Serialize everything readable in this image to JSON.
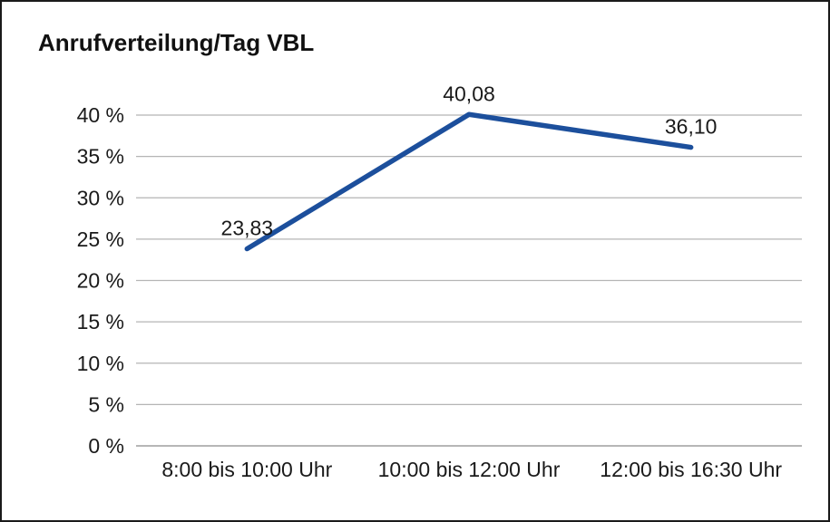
{
  "chart_data": {
    "type": "line",
    "title": "Anrufverteilung/Tag VBL",
    "categories": [
      "8:00 bis 10:00 Uhr",
      "10:00 bis 12:00 Uhr",
      "12:00 bis 16:30 Uhr"
    ],
    "values": [
      23.83,
      40.08,
      36.1
    ],
    "data_labels": [
      "23,83",
      "40,08",
      "36,10"
    ],
    "series_name": "Anrufverteilung",
    "xlabel": "",
    "ylabel": "",
    "ylim": [
      0,
      40
    ],
    "ytick_step": 5,
    "ytick_labels": [
      "0 %",
      "5 %",
      "10 %",
      "15 %",
      "20 %",
      "25 %",
      "30 %",
      "35 %",
      "40 %"
    ],
    "grid": true,
    "legend_position": "none",
    "line_color": "#1c4f9c",
    "grid_color": "#b5b5b5",
    "axis_color": "#8c8c8c",
    "text_color": "#1a1a1a",
    "background_color": "#ffffff"
  }
}
